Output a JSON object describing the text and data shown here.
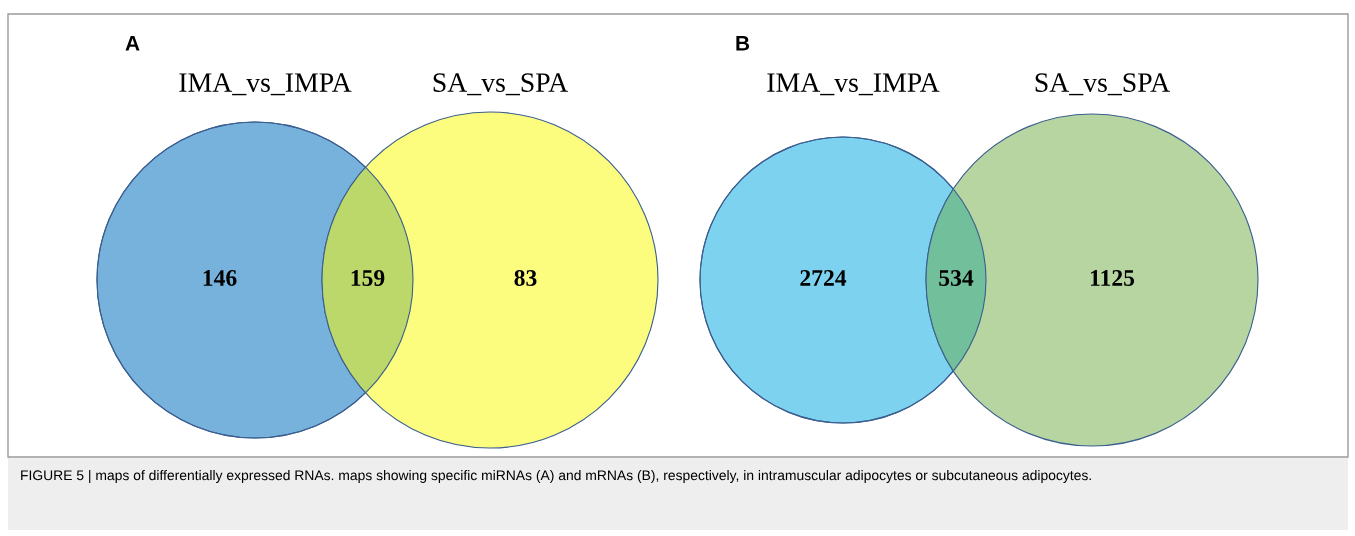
{
  "chart_data": [
    {
      "type": "other",
      "title": "A",
      "categories": [
        null,
        null,
        null
      ],
      "values": [
        146,
        159,
        83
      ],
      "colors": [
        "#76b2dc",
        "#bdd86a",
        "#fcfc7e"
      ],
      "data_labels": true,
      "annotations": [
        "IMA_vs_IMPA",
        "SA_vs_SPA"
      ]
    },
    {
      "type": "other",
      "title": "B",
      "categories": [
        null,
        null,
        null
      ],
      "values": [
        2724,
        534,
        1125
      ],
      "colors": [
        "#7dd2f0",
        "#72bf9b",
        "#b7d5a1"
      ],
      "data_labels": true,
      "annotations": [
        "IMA_vs_IMPA",
        "SA_vs_SPA",
        "FIGURE 5 | maps of differentially expressed RNAs. maps showing specific miRNAs (A) and mRNAs (B), respectively, in intramuscular adipocytes or subcutaneous adipocytes."
      ]
    }
  ]
}
